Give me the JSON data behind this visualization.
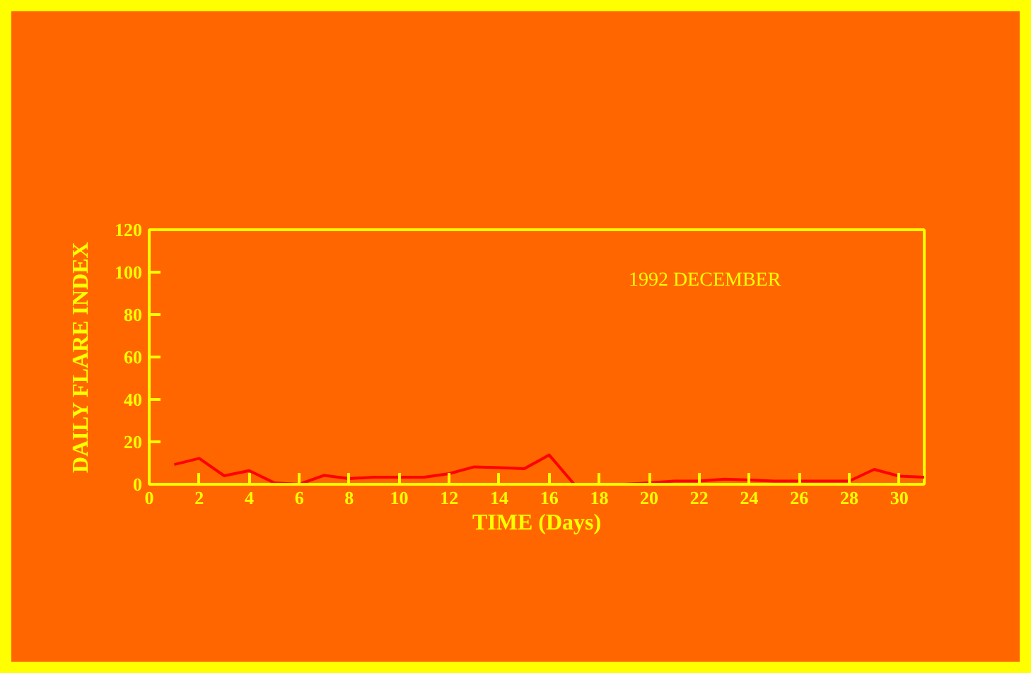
{
  "chart_data": {
    "type": "line",
    "xlabel": "TIME (Days)",
    "ylabel": "DAILY FLARE INDEX",
    "annotations": [
      "1992  DECEMBER"
    ],
    "x": [
      1,
      2,
      3,
      4,
      5,
      6,
      7,
      8,
      9,
      10,
      11,
      12,
      13,
      14,
      15,
      16,
      17,
      18,
      19,
      20,
      21,
      22,
      23,
      24,
      25,
      26,
      27,
      28,
      29,
      30,
      31
    ],
    "series": [
      {
        "color": "#ff0000",
        "values": [
          9.3,
          12.2,
          4,
          6.4,
          0.7,
          0,
          4.2,
          2.7,
          3.3,
          3.3,
          3.3,
          5,
          8.2,
          7.8,
          7.3,
          13.8,
          0,
          0,
          0,
          0.7,
          1.5,
          1.5,
          2.4,
          2,
          1.5,
          1.5,
          1.5,
          1.5,
          7,
          3.8,
          3.3
        ]
      }
    ],
    "xlim": [
      0,
      31
    ],
    "ylim": [
      0,
      120
    ],
    "xticks": [
      0,
      2,
      4,
      6,
      8,
      10,
      12,
      14,
      16,
      18,
      20,
      22,
      24,
      26,
      28,
      30
    ],
    "yticks": [
      0,
      20,
      40,
      60,
      80,
      100,
      120
    ],
    "grid": false,
    "marker": "none",
    "line_style": "solid"
  }
}
